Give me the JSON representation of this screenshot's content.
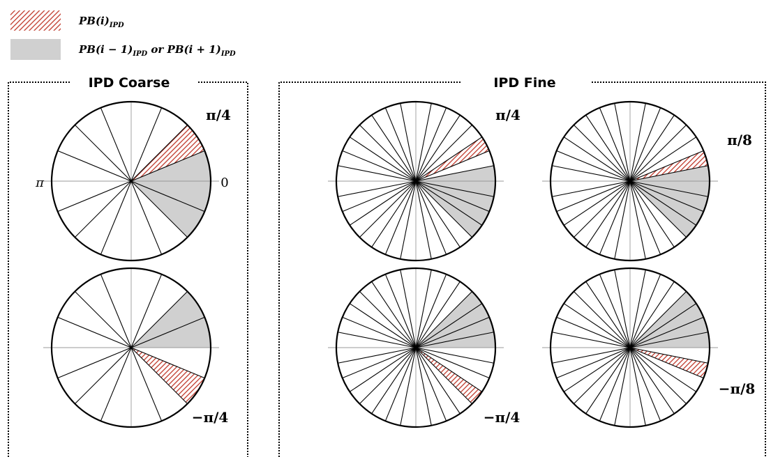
{
  "legend": {
    "items": [
      {
        "fill": "hatched",
        "base": "PB(i)",
        "sub": "IPD"
      },
      {
        "fill": "gray",
        "base": "PB(i − 1)",
        "sub1": "IPD",
        "mid": " or PB(i + 1)",
        "sub2": "IPD"
      }
    ]
  },
  "panels": {
    "coarse": {
      "title": "IPD Coarse"
    },
    "fine": {
      "title": "IPD Fine"
    }
  },
  "labels": {
    "pi": "π",
    "zero": "0",
    "coarse_top": "π/4",
    "coarse_bottom": "−π/4",
    "fine_a_top": "π/4",
    "fine_a_bottom": "−π/4",
    "fine_b_top": "π/8",
    "fine_b_bottom": "−π/8"
  },
  "colors": {
    "hatch_red": "#c0392b",
    "gray": "#d0d0d0",
    "border": "#000000"
  },
  "diagrams": [
    {
      "id": "coarse-top",
      "sectors": 16,
      "step": 22.5,
      "active": [
        [
          22.5,
          45
        ]
      ],
      "neighbors": [
        [
          0,
          22.5
        ],
        [
          -45,
          0
        ]
      ]
    },
    {
      "id": "coarse-bottom",
      "sectors": 16,
      "step": 22.5,
      "active": [
        [
          -45,
          -22.5
        ]
      ],
      "neighbors": [
        [
          0,
          45
        ]
      ]
    },
    {
      "id": "fine-a-top",
      "sectors": 32,
      "step": 11.25,
      "active": [
        [
          22.5,
          33.75
        ]
      ],
      "neighbors": [
        [
          -45,
          11.25
        ]
      ]
    },
    {
      "id": "fine-a-bottom",
      "sectors": 32,
      "step": 11.25,
      "active": [
        [
          -45,
          -33.75
        ]
      ],
      "neighbors": [
        [
          0,
          45
        ]
      ]
    },
    {
      "id": "fine-b-top",
      "sectors": 32,
      "step": 11.25,
      "active": [
        [
          11.25,
          22.5
        ]
      ],
      "neighbors": [
        [
          -45,
          11.25
        ]
      ]
    },
    {
      "id": "fine-b-bottom",
      "sectors": 32,
      "step": 11.25,
      "active": [
        [
          -22.5,
          -11.25
        ]
      ],
      "neighbors": [
        [
          0,
          45
        ]
      ]
    }
  ]
}
